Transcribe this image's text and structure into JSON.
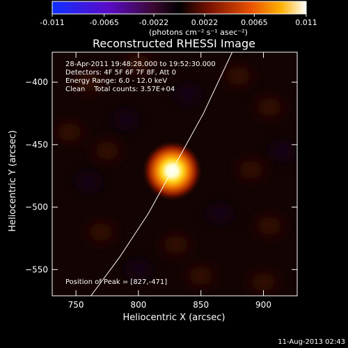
{
  "chart_data": {
    "type": "heatmap",
    "title": "Reconstructed RHESSI Image",
    "xlabel": "Heliocentric X (arcsec)",
    "ylabel": "Heliocentric Y (arcsec)",
    "x_ticks": [
      750,
      800,
      850,
      900
    ],
    "y_ticks": [
      -400,
      -450,
      -500,
      -550
    ],
    "xlim": [
      731,
      927
    ],
    "ylim": [
      -571,
      -376
    ],
    "colorbar": {
      "min": -0.011,
      "max": 0.011,
      "tick_labels": [
        "-0.011",
        "-0.0065",
        "-0.0022",
        "0.0022",
        "0.0065",
        "0.011"
      ],
      "tick_values": [
        -0.011,
        -0.0065,
        -0.0022,
        0.0022,
        0.0065,
        0.011
      ],
      "unit": "(photons cm⁻² s⁻¹ asec⁻²)",
      "colormap": "blue-purple-black-red-orange-yellow-white"
    },
    "peak": {
      "x": 827,
      "y": -471,
      "value": 0.011
    },
    "limb_points": [
      [
        762,
        -571
      ],
      [
        785,
        -540
      ],
      [
        808,
        -505
      ],
      [
        830,
        -465
      ],
      [
        852,
        -425
      ],
      [
        875,
        -376
      ]
    ],
    "annotations": [
      "28-Apr-2011 19:48:28.000 to 19:52:30.000",
      "Detectors: 4F 5F 6F 7F 8F, Att 0",
      "Energy Range: 6.0 - 12.0 keV",
      "Clean    Total counts: 3.57E+04"
    ],
    "peak_label": "Position of Peak = [827,-471]",
    "footer_date": "11-Aug-2013 02:43"
  }
}
